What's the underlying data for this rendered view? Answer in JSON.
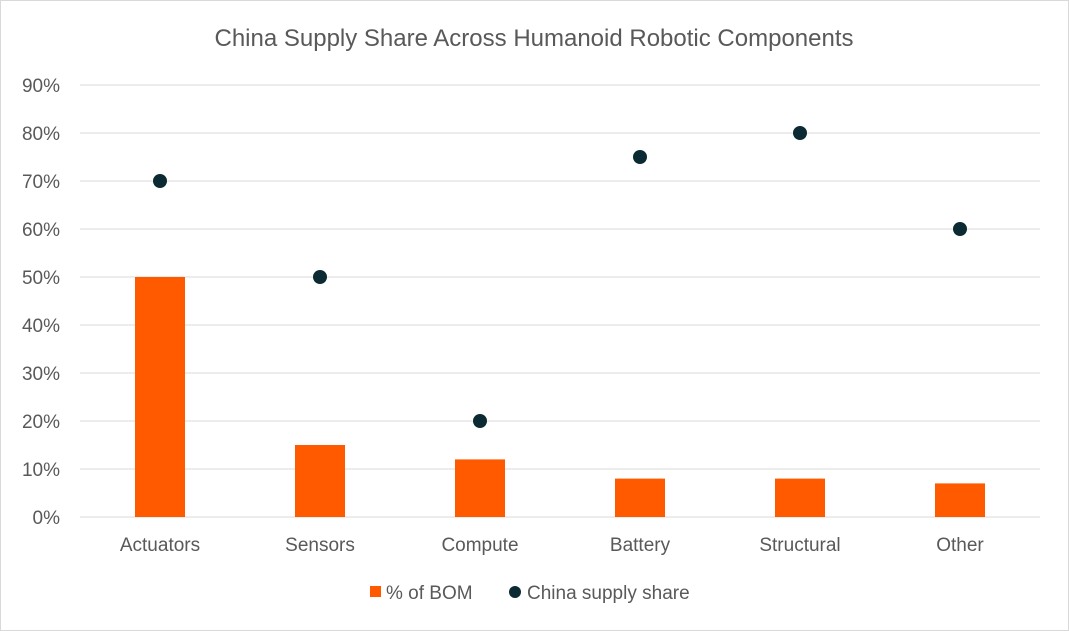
{
  "chart_data": {
    "type": "bar",
    "title": "China Supply Share Across Humanoid Robotic Components",
    "categories": [
      "Actuators",
      "Sensors",
      "Compute",
      "Battery",
      "Structural",
      "Other"
    ],
    "series": [
      {
        "name": "% of BOM",
        "type": "bar",
        "color": "#ff5a00",
        "values": [
          50,
          15,
          12,
          8,
          8,
          7
        ]
      },
      {
        "name": "China supply share",
        "type": "scatter",
        "color": "#0b2a33",
        "values": [
          70,
          50,
          20,
          75,
          80,
          60
        ]
      }
    ],
    "y_ticks": [
      "0%",
      "10%",
      "20%",
      "30%",
      "40%",
      "50%",
      "60%",
      "70%",
      "80%",
      "90%"
    ],
    "ylim": [
      0,
      90
    ],
    "xlabel": "",
    "ylabel": "",
    "grid": true,
    "legend_position": "bottom"
  }
}
